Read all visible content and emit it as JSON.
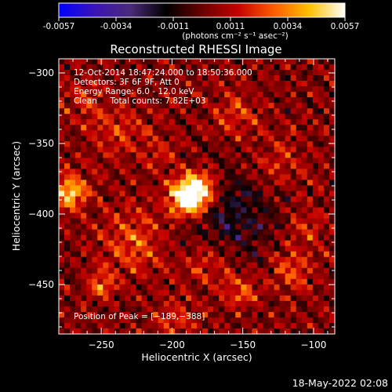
{
  "colorbar": {
    "ticks": [
      "-0.0057",
      "-0.0034",
      "-0.0011",
      "0.0011",
      "0.0034",
      "0.0057"
    ],
    "units_line": "(photons cm⁻² s⁻¹ asec⁻²)",
    "colormap": [
      "#0000ff",
      "#3a14b8",
      "#4b2a78",
      "#000000",
      "#6a0000",
      "#c40000",
      "#ff5a00",
      "#ffc000",
      "#ffffff"
    ]
  },
  "chart_data": {
    "type": "heatmap",
    "title": "Reconstructed RHESSI Image",
    "xlabel": "Heliocentric X (arcsec)",
    "ylabel": "Heliocentric Y (arcsec)",
    "xlim": [
      -280,
      -85
    ],
    "ylim": [
      -485,
      -290
    ],
    "xticks": [
      -250,
      -200,
      -150,
      -100
    ],
    "yticks": [
      -300,
      -350,
      -400,
      -450
    ],
    "xtick_labels": [
      "−250",
      "−200",
      "−150",
      "−100"
    ],
    "ytick_labels": [
      "−300",
      "−350",
      "−400",
      "−450"
    ],
    "value_range": [
      -0.0057,
      0.0057
    ],
    "annotations": [
      "12-Oct-2014 18:47:24.000 to 18:50:36.000",
      "Detectors: 3F 6F 9F, Att 0",
      "Energy Range: 6.0 - 12.0 keV",
      "Clean     Total counts: 7.82E+03"
    ],
    "peak_label": "Position of Peak = [−189,−388]",
    "peak": [
      -189,
      -388
    ]
  },
  "footer": {
    "timestamp": "18-May-2022 02:08"
  }
}
